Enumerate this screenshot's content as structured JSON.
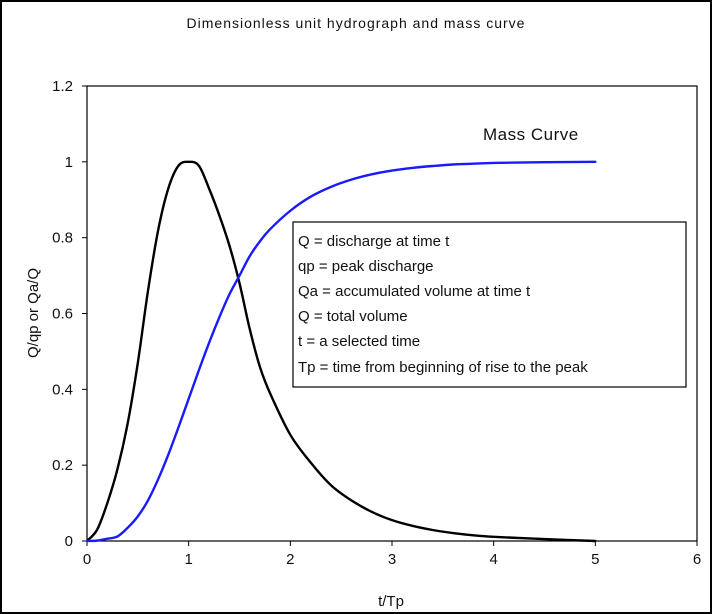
{
  "chart_data": {
    "type": "line",
    "title": "Dimensionless unit hydrograph and mass curve",
    "xlabel": "t/Tp",
    "ylabel": "Q/qp or Qa/Q",
    "xlim": [
      0,
      6
    ],
    "ylim": [
      0,
      1.2
    ],
    "x_ticks": [
      "0",
      "1",
      "2",
      "3",
      "4",
      "5",
      "6"
    ],
    "y_ticks": [
      "0",
      "0.2",
      "0.4",
      "0.6",
      "0.8",
      "1",
      "1.2"
    ],
    "grid": false,
    "colors": {
      "hydrograph": "#000000",
      "mass_curve": "#1a1aff"
    },
    "series": [
      {
        "key": "hydrograph",
        "x": [
          0,
          0.1,
          0.2,
          0.3,
          0.4,
          0.5,
          0.6,
          0.7,
          0.8,
          0.9,
          1.0,
          1.1,
          1.2,
          1.3,
          1.4,
          1.5,
          1.6,
          1.7,
          1.8,
          2.0,
          2.2,
          2.4,
          2.6,
          2.8,
          3.0,
          3.2,
          3.4,
          3.6,
          3.8,
          4.0,
          4.5,
          5.0
        ],
        "y": [
          0,
          0.03,
          0.1,
          0.19,
          0.31,
          0.47,
          0.66,
          0.82,
          0.93,
          0.99,
          1.0,
          0.99,
          0.93,
          0.86,
          0.78,
          0.68,
          0.56,
          0.46,
          0.39,
          0.28,
          0.207,
          0.147,
          0.107,
          0.077,
          0.055,
          0.04,
          0.029,
          0.021,
          0.015,
          0.011,
          0.005,
          0
        ]
      },
      {
        "key": "mass_curve",
        "name": "Mass Curve",
        "x": [
          0,
          0.1,
          0.2,
          0.3,
          0.4,
          0.5,
          0.6,
          0.7,
          0.8,
          0.9,
          1.0,
          1.1,
          1.2,
          1.3,
          1.4,
          1.5,
          1.6,
          1.7,
          1.8,
          2.0,
          2.2,
          2.4,
          2.6,
          2.8,
          3.0,
          3.2,
          3.4,
          3.6,
          3.8,
          4.0,
          4.5,
          5.0
        ],
        "y": [
          0,
          0.001,
          0.006,
          0.012,
          0.035,
          0.065,
          0.107,
          0.163,
          0.228,
          0.3,
          0.375,
          0.45,
          0.522,
          0.589,
          0.65,
          0.7,
          0.751,
          0.79,
          0.822,
          0.871,
          0.908,
          0.934,
          0.953,
          0.967,
          0.977,
          0.984,
          0.989,
          0.993,
          0.995,
          0.997,
          0.999,
          1.0
        ]
      }
    ],
    "annotation": "Mass Curve",
    "legend_box": {
      "placement": "right-center",
      "lines": [
        "Q = discharge at time t",
        "qp = peak discharge",
        "Qa = accumulated volume at time t",
        "Q = total volume",
        "t = a selected time",
        "Tp = time from beginning of rise to the peak"
      ]
    }
  }
}
